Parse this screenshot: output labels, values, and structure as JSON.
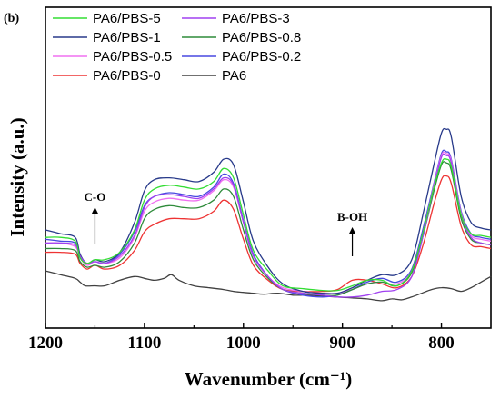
{
  "chart_data": {
    "type": "line",
    "panel_label": "(b)",
    "xlabel": "Wavenumber (cm⁻¹)",
    "ylabel": "Intensity (a.u.)",
    "xlim": [
      1200,
      750
    ],
    "ylim": [
      0,
      1
    ],
    "x_reversed": true,
    "x_ticks": [
      1200,
      1100,
      1000,
      900,
      800
    ],
    "y_ticks_visible": false,
    "legend_position": "top-left",
    "legend_columns": 2,
    "annotations": [
      {
        "text": "C-O",
        "x": 1150
      },
      {
        "text": "B-OH",
        "x": 890
      }
    ],
    "series": [
      {
        "name": "PA6/PBS-5",
        "color": "#33dd33",
        "points": [
          [
            1200,
            0.36
          ],
          [
            1185,
            0.36
          ],
          [
            1170,
            0.34
          ],
          [
            1165,
            0.25
          ],
          [
            1158,
            0.22
          ],
          [
            1150,
            0.24
          ],
          [
            1140,
            0.24
          ],
          [
            1125,
            0.28
          ],
          [
            1110,
            0.4
          ],
          [
            1100,
            0.56
          ],
          [
            1090,
            0.62
          ],
          [
            1075,
            0.64
          ],
          [
            1060,
            0.63
          ],
          [
            1045,
            0.62
          ],
          [
            1030,
            0.66
          ],
          [
            1020,
            0.73
          ],
          [
            1010,
            0.68
          ],
          [
            1000,
            0.48
          ],
          [
            990,
            0.29
          ],
          [
            975,
            0.18
          ],
          [
            960,
            0.1
          ],
          [
            940,
            0.085
          ],
          [
            920,
            0.075
          ],
          [
            905,
            0.075
          ],
          [
            890,
            0.1
          ],
          [
            875,
            0.13
          ],
          [
            860,
            0.13
          ],
          [
            845,
            0.1
          ],
          [
            830,
            0.18
          ],
          [
            818,
            0.4
          ],
          [
            808,
            0.62
          ],
          [
            800,
            0.76
          ],
          [
            795,
            0.78
          ],
          [
            790,
            0.74
          ],
          [
            780,
            0.48
          ],
          [
            770,
            0.38
          ],
          [
            760,
            0.37
          ],
          [
            750,
            0.36
          ]
        ]
      },
      {
        "name": "PA6/PBS-3",
        "color": "#a040f0",
        "points": [
          [
            1200,
            0.33
          ],
          [
            1185,
            0.33
          ],
          [
            1170,
            0.32
          ],
          [
            1165,
            0.26
          ],
          [
            1158,
            0.22
          ],
          [
            1150,
            0.23
          ],
          [
            1140,
            0.22
          ],
          [
            1125,
            0.26
          ],
          [
            1110,
            0.37
          ],
          [
            1100,
            0.52
          ],
          [
            1090,
            0.58
          ],
          [
            1075,
            0.59
          ],
          [
            1060,
            0.58
          ],
          [
            1045,
            0.57
          ],
          [
            1030,
            0.62
          ],
          [
            1020,
            0.68
          ],
          [
            1010,
            0.64
          ],
          [
            1000,
            0.44
          ],
          [
            990,
            0.26
          ],
          [
            975,
            0.15
          ],
          [
            960,
            0.08
          ],
          [
            940,
            0.06
          ],
          [
            920,
            0.05
          ],
          [
            905,
            0.04
          ],
          [
            890,
            0.04
          ],
          [
            875,
            0.05
          ],
          [
            860,
            0.07
          ],
          [
            845,
            0.08
          ],
          [
            830,
            0.15
          ],
          [
            818,
            0.38
          ],
          [
            808,
            0.62
          ],
          [
            800,
            0.79
          ],
          [
            795,
            0.8
          ],
          [
            790,
            0.76
          ],
          [
            780,
            0.48
          ],
          [
            770,
            0.36
          ],
          [
            760,
            0.33
          ],
          [
            750,
            0.32
          ]
        ]
      },
      {
        "name": "PA6/PBS-1",
        "color": "#283a8a",
        "points": [
          [
            1200,
            0.4
          ],
          [
            1185,
            0.38
          ],
          [
            1170,
            0.36
          ],
          [
            1165,
            0.27
          ],
          [
            1158,
            0.22
          ],
          [
            1150,
            0.24
          ],
          [
            1140,
            0.23
          ],
          [
            1125,
            0.28
          ],
          [
            1110,
            0.44
          ],
          [
            1100,
            0.61
          ],
          [
            1090,
            0.67
          ],
          [
            1075,
            0.68
          ],
          [
            1060,
            0.67
          ],
          [
            1045,
            0.66
          ],
          [
            1030,
            0.71
          ],
          [
            1020,
            0.78
          ],
          [
            1010,
            0.75
          ],
          [
            1000,
            0.55
          ],
          [
            990,
            0.34
          ],
          [
            975,
            0.2
          ],
          [
            960,
            0.11
          ],
          [
            940,
            0.07
          ],
          [
            920,
            0.06
          ],
          [
            905,
            0.06
          ],
          [
            890,
            0.09
          ],
          [
            875,
            0.13
          ],
          [
            860,
            0.16
          ],
          [
            845,
            0.16
          ],
          [
            830,
            0.24
          ],
          [
            818,
            0.5
          ],
          [
            808,
            0.74
          ],
          [
            800,
            0.92
          ],
          [
            795,
            0.94
          ],
          [
            790,
            0.9
          ],
          [
            780,
            0.58
          ],
          [
            770,
            0.44
          ],
          [
            760,
            0.41
          ],
          [
            750,
            0.4
          ]
        ]
      },
      {
        "name": "PA6/PBS-0.8",
        "color": "#2e8b3a",
        "points": [
          [
            1200,
            0.3
          ],
          [
            1185,
            0.3
          ],
          [
            1170,
            0.29
          ],
          [
            1165,
            0.23
          ],
          [
            1158,
            0.2
          ],
          [
            1150,
            0.21
          ],
          [
            1140,
            0.2
          ],
          [
            1125,
            0.23
          ],
          [
            1110,
            0.33
          ],
          [
            1100,
            0.46
          ],
          [
            1090,
            0.51
          ],
          [
            1075,
            0.53
          ],
          [
            1060,
            0.52
          ],
          [
            1045,
            0.52
          ],
          [
            1030,
            0.56
          ],
          [
            1020,
            0.62
          ],
          [
            1010,
            0.58
          ],
          [
            1000,
            0.4
          ],
          [
            990,
            0.24
          ],
          [
            975,
            0.14
          ],
          [
            960,
            0.08
          ],
          [
            940,
            0.06
          ],
          [
            920,
            0.05
          ],
          [
            905,
            0.05
          ],
          [
            890,
            0.08
          ],
          [
            875,
            0.11
          ],
          [
            860,
            0.12
          ],
          [
            845,
            0.1
          ],
          [
            830,
            0.17
          ],
          [
            818,
            0.38
          ],
          [
            808,
            0.6
          ],
          [
            800,
            0.75
          ],
          [
            795,
            0.76
          ],
          [
            790,
            0.72
          ],
          [
            780,
            0.46
          ],
          [
            770,
            0.35
          ],
          [
            760,
            0.33
          ],
          [
            750,
            0.32
          ]
        ]
      },
      {
        "name": "PA6/PBS-0.5",
        "color": "#f070f0",
        "points": [
          [
            1200,
            0.33
          ],
          [
            1185,
            0.33
          ],
          [
            1170,
            0.31
          ],
          [
            1165,
            0.25
          ],
          [
            1158,
            0.21
          ],
          [
            1150,
            0.23
          ],
          [
            1140,
            0.22
          ],
          [
            1125,
            0.25
          ],
          [
            1110,
            0.36
          ],
          [
            1100,
            0.5
          ],
          [
            1090,
            0.55
          ],
          [
            1075,
            0.57
          ],
          [
            1060,
            0.56
          ],
          [
            1045,
            0.56
          ],
          [
            1030,
            0.61
          ],
          [
            1020,
            0.67
          ],
          [
            1010,
            0.63
          ],
          [
            1000,
            0.44
          ],
          [
            990,
            0.26
          ],
          [
            975,
            0.15
          ],
          [
            960,
            0.09
          ],
          [
            940,
            0.07
          ],
          [
            920,
            0.06
          ],
          [
            905,
            0.06
          ],
          [
            890,
            0.08
          ],
          [
            875,
            0.11
          ],
          [
            860,
            0.12
          ],
          [
            845,
            0.11
          ],
          [
            830,
            0.18
          ],
          [
            818,
            0.4
          ],
          [
            808,
            0.63
          ],
          [
            800,
            0.8
          ],
          [
            795,
            0.81
          ],
          [
            790,
            0.77
          ],
          [
            780,
            0.49
          ],
          [
            770,
            0.37
          ],
          [
            760,
            0.35
          ],
          [
            750,
            0.34
          ]
        ]
      },
      {
        "name": "PA6/PBS-0.2",
        "color": "#4848e0",
        "points": [
          [
            1200,
            0.35
          ],
          [
            1185,
            0.34
          ],
          [
            1170,
            0.33
          ],
          [
            1165,
            0.26
          ],
          [
            1158,
            0.22
          ],
          [
            1150,
            0.23
          ],
          [
            1140,
            0.22
          ],
          [
            1125,
            0.27
          ],
          [
            1110,
            0.39
          ],
          [
            1100,
            0.53
          ],
          [
            1090,
            0.58
          ],
          [
            1075,
            0.6
          ],
          [
            1060,
            0.59
          ],
          [
            1045,
            0.58
          ],
          [
            1030,
            0.63
          ],
          [
            1020,
            0.7
          ],
          [
            1010,
            0.65
          ],
          [
            1000,
            0.45
          ],
          [
            990,
            0.27
          ],
          [
            975,
            0.15
          ],
          [
            960,
            0.08
          ],
          [
            940,
            0.05
          ],
          [
            920,
            0.04
          ],
          [
            905,
            0.05
          ],
          [
            890,
            0.08
          ],
          [
            875,
            0.12
          ],
          [
            860,
            0.14
          ],
          [
            845,
            0.12
          ],
          [
            830,
            0.19
          ],
          [
            818,
            0.42
          ],
          [
            808,
            0.64
          ],
          [
            800,
            0.81
          ],
          [
            795,
            0.82
          ],
          [
            790,
            0.78
          ],
          [
            780,
            0.5
          ],
          [
            770,
            0.38
          ],
          [
            760,
            0.36
          ],
          [
            750,
            0.35
          ]
        ]
      },
      {
        "name": "PA6/PBS-0",
        "color": "#ee3333",
        "points": [
          [
            1200,
            0.28
          ],
          [
            1185,
            0.28
          ],
          [
            1170,
            0.27
          ],
          [
            1165,
            0.22
          ],
          [
            1158,
            0.19
          ],
          [
            1150,
            0.21
          ],
          [
            1140,
            0.19
          ],
          [
            1125,
            0.21
          ],
          [
            1110,
            0.29
          ],
          [
            1100,
            0.39
          ],
          [
            1090,
            0.43
          ],
          [
            1075,
            0.46
          ],
          [
            1060,
            0.46
          ],
          [
            1045,
            0.46
          ],
          [
            1030,
            0.5
          ],
          [
            1020,
            0.56
          ],
          [
            1010,
            0.51
          ],
          [
            1000,
            0.35
          ],
          [
            990,
            0.21
          ],
          [
            975,
            0.13
          ],
          [
            960,
            0.08
          ],
          [
            940,
            0.07
          ],
          [
            920,
            0.07
          ],
          [
            905,
            0.08
          ],
          [
            890,
            0.13
          ],
          [
            875,
            0.13
          ],
          [
            860,
            0.11
          ],
          [
            845,
            0.09
          ],
          [
            830,
            0.15
          ],
          [
            818,
            0.33
          ],
          [
            808,
            0.53
          ],
          [
            800,
            0.67
          ],
          [
            795,
            0.69
          ],
          [
            790,
            0.65
          ],
          [
            780,
            0.42
          ],
          [
            770,
            0.32
          ],
          [
            760,
            0.31
          ],
          [
            750,
            0.3
          ]
        ]
      },
      {
        "name": "PA6",
        "color": "#404040",
        "points": [
          [
            1200,
            0.18
          ],
          [
            1185,
            0.16
          ],
          [
            1170,
            0.14
          ],
          [
            1165,
            0.12
          ],
          [
            1160,
            0.1
          ],
          [
            1150,
            0.1
          ],
          [
            1140,
            0.1
          ],
          [
            1125,
            0.13
          ],
          [
            1110,
            0.15
          ],
          [
            1100,
            0.14
          ],
          [
            1090,
            0.13
          ],
          [
            1080,
            0.14
          ],
          [
            1073,
            0.16
          ],
          [
            1065,
            0.13
          ],
          [
            1050,
            0.1
          ],
          [
            1035,
            0.09
          ],
          [
            1020,
            0.08
          ],
          [
            1010,
            0.07
          ],
          [
            1000,
            0.065
          ],
          [
            990,
            0.06
          ],
          [
            980,
            0.055
          ],
          [
            965,
            0.06
          ],
          [
            950,
            0.05
          ],
          [
            935,
            0.05
          ],
          [
            920,
            0.045
          ],
          [
            905,
            0.04
          ],
          [
            890,
            0.035
          ],
          [
            875,
            0.03
          ],
          [
            860,
            0.02
          ],
          [
            850,
            0.03
          ],
          [
            840,
            0.025
          ],
          [
            830,
            0.04
          ],
          [
            820,
            0.06
          ],
          [
            810,
            0.08
          ],
          [
            800,
            0.09
          ],
          [
            790,
            0.085
          ],
          [
            780,
            0.07
          ],
          [
            770,
            0.09
          ],
          [
            760,
            0.12
          ],
          [
            750,
            0.15
          ]
        ]
      }
    ]
  }
}
